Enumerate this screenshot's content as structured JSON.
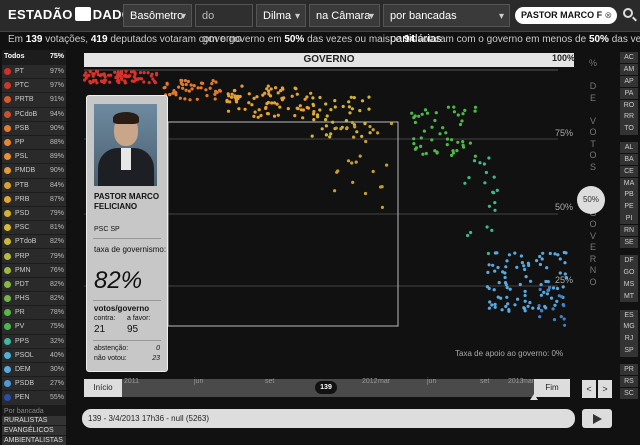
{
  "header": {
    "logo_left": "ESTADÃO",
    "logo_right": "DADOS",
    "filters": [
      {
        "label": "Basômetro"
      },
      {
        "label": "do governo"
      },
      {
        "label": "Dilma"
      },
      {
        "label": "na Câmara"
      },
      {
        "label": "por bancadas partidárias"
      }
    ],
    "search_value": "PASTOR MARCO F"
  },
  "summary": {
    "total_votes": "139",
    "votes_word": "votações",
    "deputies": "419",
    "part1": "deputados votaram com o governo em",
    "pct1": "50%",
    "part2": "das vezes ou mais; e",
    "count2": "94",
    "part3": "votaram com o governo em menos de",
    "pct2": "50%",
    "part4": "das vezes"
  },
  "sidebar": {
    "all_label": "Todos",
    "all_pct": "75%",
    "parties": [
      {
        "name": "PT",
        "pct": "97%",
        "color": "#d0302a"
      },
      {
        "name": "PTC",
        "pct": "97%",
        "color": "#c83a2a"
      },
      {
        "name": "PRTB",
        "pct": "91%",
        "color": "#d65a2a"
      },
      {
        "name": "PCdoB",
        "pct": "94%",
        "color": "#c8502a"
      },
      {
        "name": "PSB",
        "pct": "90%",
        "color": "#e37a2c"
      },
      {
        "name": "PP",
        "pct": "88%",
        "color": "#e8872d"
      },
      {
        "name": "PSL",
        "pct": "89%",
        "color": "#e98f2e"
      },
      {
        "name": "PMDB",
        "pct": "90%",
        "color": "#e89a30"
      },
      {
        "name": "PTB",
        "pct": "84%",
        "color": "#d9a032"
      },
      {
        "name": "PRB",
        "pct": "87%",
        "color": "#e0a532"
      },
      {
        "name": "PSD",
        "pct": "79%",
        "color": "#d4b035"
      },
      {
        "name": "PSC",
        "pct": "81%",
        "color": "#d9b838"
      },
      {
        "name": "PTdoB",
        "pct": "82%",
        "color": "#c9b83b"
      },
      {
        "name": "PRP",
        "pct": "79%",
        "color": "#b8b83e"
      },
      {
        "name": "PMN",
        "pct": "76%",
        "color": "#a0b840"
      },
      {
        "name": "PDT",
        "pct": "82%",
        "color": "#88b842"
      },
      {
        "name": "PHS",
        "pct": "82%",
        "color": "#70b844"
      },
      {
        "name": "PR",
        "pct": "78%",
        "color": "#58b846"
      },
      {
        "name": "PV",
        "pct": "75%",
        "color": "#48b84a"
      },
      {
        "name": "PPS",
        "pct": "32%",
        "color": "#3fb8a0"
      },
      {
        "name": "PSOL",
        "pct": "40%",
        "color": "#50b0d8"
      },
      {
        "name": "DEM",
        "pct": "30%",
        "color": "#5aa8e0"
      },
      {
        "name": "PSDB",
        "pct": "27%",
        "color": "#4e9ad8"
      },
      {
        "name": "PEN",
        "pct": "55%",
        "color": "#2a4ea8"
      }
    ],
    "by_bench_label": "Por bancada",
    "benches": [
      "RURALISTAS",
      "EVANGÉLICOS",
      "AMBIENTALISTAS"
    ]
  },
  "states": [
    "AC",
    "AM",
    "AP",
    "PA",
    "RO",
    "RR",
    "TO",
    "",
    "AL",
    "BA",
    "CE",
    "MA",
    "PB",
    "PE",
    "PI",
    "RN",
    "SE",
    "",
    "DF",
    "GO",
    "MS",
    "MT",
    "",
    "ES",
    "MG",
    "RJ",
    "SP",
    "",
    "PR",
    "RS",
    "SC"
  ],
  "plot": {
    "header": "GOVERNO",
    "top_pct": "100%",
    "vertical_label": [
      "%",
      "",
      "D",
      "E",
      "",
      "V",
      "O",
      "T",
      "O",
      "S",
      "",
      "O",
      "",
      "G",
      "O",
      "V",
      "E",
      "R",
      "N",
      "O"
    ],
    "ticks": [
      "75%",
      "50%",
      "25%"
    ],
    "handle_value": "50%",
    "support_note": "Taxa de apoio ao governo: 0%"
  },
  "card": {
    "name": "PASTOR MARCO FELICIANO",
    "party": "PSC SP",
    "rate_label": "taxa de governismo:",
    "rate": "82%",
    "votes_label": "votos/governo",
    "against_label": "contra:",
    "favor_label": "a favor:",
    "against": "21",
    "favor": "95",
    "abstention_label": "abstenção:",
    "abstention": "0",
    "no_vote_label": "não votou:",
    "no_vote": "23"
  },
  "timeline": {
    "start_label": "Início",
    "end_label": "Fim",
    "ticks": [
      "2011",
      "jun",
      "set",
      "2012",
      "mar",
      "jun",
      "set",
      "2013",
      "mar"
    ],
    "knob": "139",
    "prev": "<",
    "next": ">"
  },
  "status_text": "139 - 3/4/2013 17h36 - null (5263)"
}
